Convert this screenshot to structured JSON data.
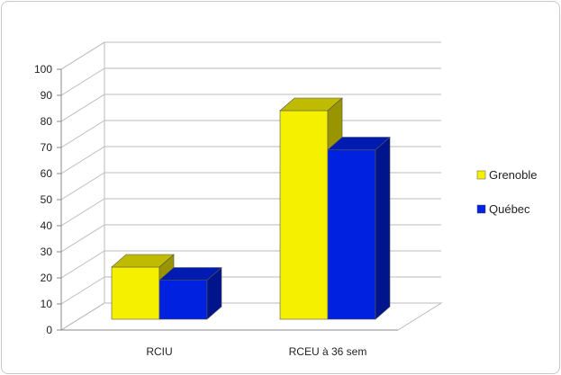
{
  "chart_data": {
    "type": "bar",
    "style": "3d-clustered-column",
    "categories": [
      "RCIU",
      "RCEU à 36 sem"
    ],
    "series": [
      {
        "name": "Grenoble",
        "color": "#f5f000",
        "values": [
          20,
          80
        ]
      },
      {
        "name": "Québec",
        "color": "#0022e0",
        "values": [
          15,
          65
        ]
      }
    ],
    "ylim": [
      0,
      100
    ],
    "yticks": [
      0,
      10,
      20,
      30,
      40,
      50,
      60,
      70,
      80,
      90,
      100
    ],
    "grid": true,
    "legend": "right",
    "title": "",
    "xlabel": "",
    "ylabel": ""
  }
}
